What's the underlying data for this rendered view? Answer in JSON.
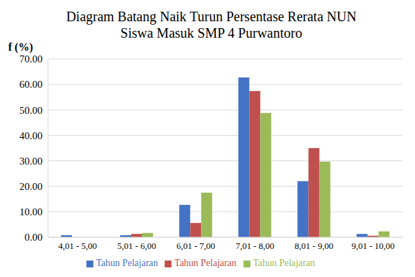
{
  "chart_data": {
    "type": "bar",
    "title": "Diagram Batang Naik Turun Persentase Rerata NUN Siswa Masuk SMP 4 Purwantoro",
    "y_label": "f (%)",
    "categories": [
      "4,01 - 5,00",
      "5,01 - 6,00",
      "6,01 - 7,00",
      "7,01 - 8,00",
      "8,01 - 9,00",
      "9,01 - 10,00"
    ],
    "series": [
      {
        "name": "Tahun Pelajaran",
        "color": "#4472c4",
        "values": [
          0.8,
          0.8,
          12.7,
          62.7,
          22.0,
          1.3
        ]
      },
      {
        "name": "Tahun Pelajaran",
        "color": "#c0504d",
        "values": [
          0,
          1.3,
          5.6,
          57.4,
          35.0,
          0.6
        ]
      },
      {
        "name": "Tahun Pelajaran",
        "color": "#9bbb59",
        "values": [
          0,
          1.7,
          17.5,
          48.8,
          29.7,
          2.3
        ]
      }
    ],
    "ylim": [
      0,
      70
    ],
    "yticks": [
      {
        "value": 0,
        "label": "0.00"
      },
      {
        "value": 10,
        "label": "10.00"
      },
      {
        "value": 20,
        "label": "20.00"
      },
      {
        "value": 30,
        "label": "30.00"
      },
      {
        "value": 40,
        "label": "40.00"
      },
      {
        "value": 50,
        "label": "50.00"
      },
      {
        "value": 60,
        "label": "60.00"
      },
      {
        "value": 70,
        "label": "70.00"
      }
    ],
    "grid": true,
    "legend": "bottom"
  }
}
